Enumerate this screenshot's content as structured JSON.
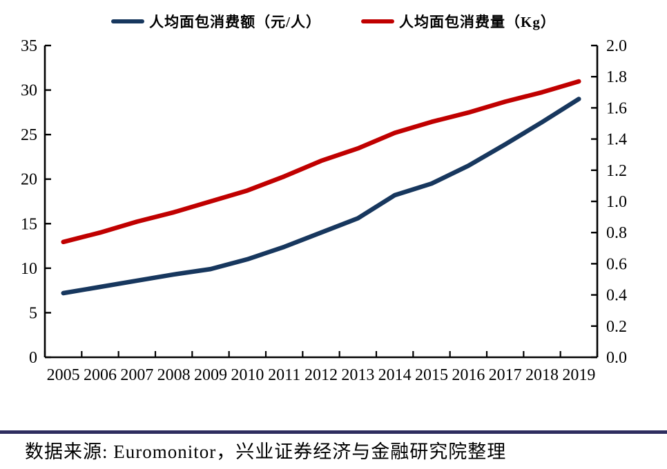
{
  "colors": {
    "series_amount": "#17375E",
    "series_volume": "#C00000",
    "axis": "#000000",
    "divider": "#2E2D5F",
    "background": "#FFFFFF"
  },
  "source_note": "数据来源: Euromonitor，兴业证券经济与金融研究院整理",
  "chart_data": {
    "type": "line",
    "title": "",
    "xlabel": "",
    "ylabel_left": "",
    "ylabel_right": "",
    "grid": false,
    "legend_position": "top",
    "categories": [
      "2005",
      "2006",
      "2007",
      "2008",
      "2009",
      "2010",
      "2011",
      "2012",
      "2013",
      "2014",
      "2015",
      "2016",
      "2017",
      "2018",
      "2019"
    ],
    "left_axis": {
      "min": 0,
      "max": 35,
      "step": 5,
      "ticks": [
        "0",
        "5",
        "10",
        "15",
        "20",
        "25",
        "30",
        "35"
      ]
    },
    "right_axis": {
      "min": 0,
      "max": 2.0,
      "step": 0.2,
      "ticks": [
        "0.0",
        "0.2",
        "0.4",
        "0.6",
        "0.8",
        "1.0",
        "1.2",
        "1.4",
        "1.6",
        "1.8",
        "2.0"
      ]
    },
    "series": [
      {
        "name": "人均面包消费额（元/人）",
        "axis": "left",
        "color": "#17375E",
        "values": [
          7.2,
          7.9,
          8.6,
          9.3,
          9.9,
          11.0,
          12.4,
          14.0,
          15.6,
          18.2,
          19.5,
          21.5,
          23.9,
          26.4,
          29.0
        ]
      },
      {
        "name": "人均面包消费量（Kg）",
        "axis": "right",
        "color": "#C00000",
        "values": [
          0.74,
          0.8,
          0.87,
          0.93,
          1.0,
          1.07,
          1.16,
          1.26,
          1.34,
          1.44,
          1.51,
          1.57,
          1.64,
          1.7,
          1.77
        ]
      }
    ]
  }
}
